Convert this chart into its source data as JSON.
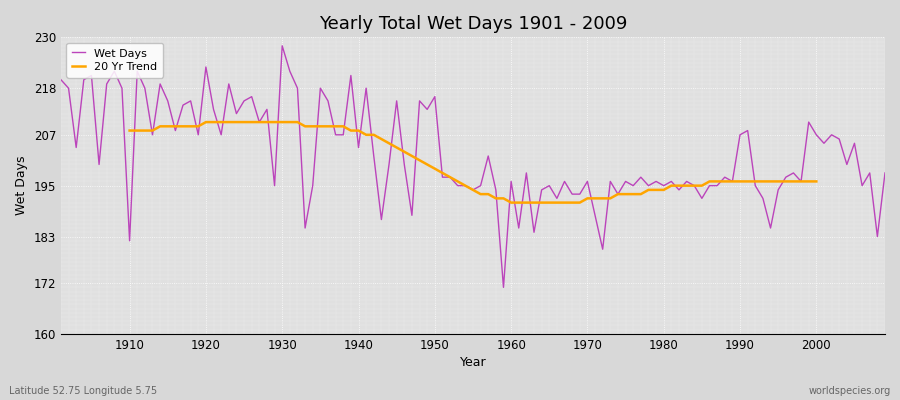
{
  "title": "Yearly Total Wet Days 1901 - 2009",
  "xlabel": "Year",
  "ylabel": "Wet Days",
  "footer_left": "Latitude 52.75 Longitude 5.75",
  "footer_right": "worldspecies.org",
  "ylim": [
    160,
    230
  ],
  "yticks": [
    160,
    172,
    183,
    195,
    207,
    218,
    230
  ],
  "line_color": "#BB44BB",
  "trend_color": "#FFA500",
  "fig_bg_color": "#D8D8D8",
  "plot_bg_color": "#E0E0E0",
  "years": [
    1901,
    1902,
    1903,
    1904,
    1905,
    1906,
    1907,
    1908,
    1909,
    1910,
    1911,
    1912,
    1913,
    1914,
    1915,
    1916,
    1917,
    1918,
    1919,
    1920,
    1921,
    1922,
    1923,
    1924,
    1925,
    1926,
    1927,
    1928,
    1929,
    1930,
    1931,
    1932,
    1933,
    1934,
    1935,
    1936,
    1937,
    1938,
    1939,
    1940,
    1941,
    1942,
    1943,
    1944,
    1945,
    1946,
    1947,
    1948,
    1949,
    1950,
    1951,
    1952,
    1953,
    1954,
    1955,
    1956,
    1957,
    1958,
    1959,
    1960,
    1961,
    1962,
    1963,
    1964,
    1965,
    1966,
    1967,
    1968,
    1969,
    1970,
    1971,
    1972,
    1973,
    1974,
    1975,
    1976,
    1977,
    1978,
    1979,
    1980,
    1981,
    1982,
    1983,
    1984,
    1985,
    1986,
    1987,
    1988,
    1989,
    1990,
    1991,
    1992,
    1993,
    1994,
    1995,
    1996,
    1997,
    1998,
    1999,
    2000,
    2001,
    2002,
    2003,
    2004,
    2005,
    2006,
    2007,
    2008,
    2009
  ],
  "wet_days": [
    220,
    218,
    204,
    220,
    221,
    200,
    219,
    222,
    218,
    182,
    222,
    218,
    207,
    219,
    215,
    208,
    214,
    215,
    207,
    223,
    213,
    207,
    219,
    212,
    215,
    216,
    210,
    213,
    195,
    228,
    222,
    218,
    185,
    195,
    218,
    215,
    207,
    207,
    221,
    204,
    218,
    202,
    187,
    200,
    215,
    200,
    188,
    215,
    213,
    216,
    197,
    197,
    195,
    195,
    194,
    195,
    202,
    194,
    171,
    196,
    185,
    198,
    184,
    194,
    195,
    192,
    196,
    193,
    193,
    196,
    188,
    180,
    196,
    193,
    196,
    195,
    197,
    195,
    196,
    195,
    196,
    194,
    196,
    195,
    192,
    195,
    195,
    197,
    196,
    207,
    208,
    195,
    192,
    185,
    194,
    197,
    198,
    196,
    210,
    207,
    205,
    207,
    206,
    200,
    205,
    195,
    198,
    183,
    198
  ],
  "trend_years": [
    1910,
    1911,
    1912,
    1913,
    1914,
    1915,
    1916,
    1917,
    1918,
    1919,
    1920,
    1921,
    1922,
    1923,
    1924,
    1925,
    1926,
    1927,
    1928,
    1929,
    1930,
    1931,
    1932,
    1933,
    1934,
    1935,
    1936,
    1937,
    1938,
    1939,
    1940,
    1941,
    1942,
    1943,
    1944,
    1945,
    1946,
    1947,
    1948,
    1949,
    1950,
    1951,
    1952,
    1953,
    1954,
    1955,
    1956,
    1957,
    1958,
    1959,
    1960,
    1961,
    1962,
    1963,
    1964,
    1965,
    1966,
    1967,
    1968,
    1969,
    1970,
    1971,
    1972,
    1973,
    1974,
    1975,
    1976,
    1977,
    1978,
    1979,
    1980,
    1981,
    1982,
    1983,
    1984,
    1985,
    1986,
    1987,
    1988,
    1989,
    1990,
    1991,
    1992,
    1993,
    1994,
    1995,
    1996,
    1997,
    1998,
    1999,
    2000
  ],
  "trend_values": [
    208,
    208,
    208,
    208,
    209,
    209,
    209,
    209,
    209,
    209,
    210,
    210,
    210,
    210,
    210,
    210,
    210,
    210,
    210,
    210,
    210,
    210,
    210,
    209,
    209,
    209,
    209,
    209,
    209,
    208,
    208,
    207,
    207,
    206,
    205,
    204,
    203,
    202,
    201,
    200,
    199,
    198,
    197,
    196,
    195,
    194,
    193,
    193,
    192,
    192,
    191,
    191,
    191,
    191,
    191,
    191,
    191,
    191,
    191,
    191,
    192,
    192,
    192,
    192,
    193,
    193,
    193,
    193,
    194,
    194,
    194,
    195,
    195,
    195,
    195,
    195,
    196,
    196,
    196,
    196,
    196,
    196,
    196,
    196,
    196,
    196,
    196,
    196,
    196,
    196,
    196
  ]
}
